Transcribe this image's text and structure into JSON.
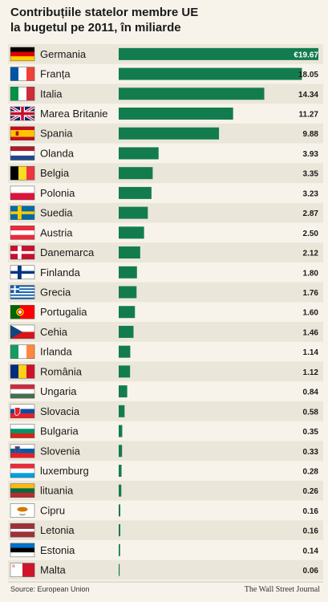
{
  "title_line1": "Contribuțiile statelor membre UE",
  "title_line2": "la bugetul pe 2011, în miliarde",
  "source": "Source: European Union",
  "publisher": "The Wall Street Journal",
  "colors": {
    "bar": "#137c4f",
    "row_alt": "#ebe6da",
    "background": "#f7f3ea"
  },
  "chart_data": {
    "type": "bar",
    "orientation": "horizontal",
    "title": "Contribuțiile statelor membre UE la bugetul pe 2011, în miliarde",
    "categories": [
      "Germania",
      "Franța",
      "Italia",
      "Marea Britanie",
      "Spania",
      "Olanda",
      "Belgia",
      "Polonia",
      "Suedia",
      "Austria",
      "Danemarca",
      "Finlanda",
      "Grecia",
      "Portugalia",
      "Cehia",
      "Irlanda",
      "România",
      "Ungaria",
      "Slovacia",
      "Bulgaria",
      "Slovenia",
      "luxemburg",
      "lituania",
      "Cipru",
      "Letonia",
      "Estonia",
      "Malta"
    ],
    "values": [
      19.67,
      18.05,
      14.34,
      11.27,
      9.88,
      3.93,
      3.35,
      3.23,
      2.87,
      2.5,
      2.12,
      1.8,
      1.76,
      1.6,
      1.46,
      1.14,
      1.12,
      0.84,
      0.58,
      0.35,
      0.33,
      0.28,
      0.26,
      0.16,
      0.16,
      0.14,
      0.06
    ],
    "value_labels": [
      "€19.67",
      "18.05",
      "14.34",
      "11.27",
      "9.88",
      "3.93",
      "3.35",
      "3.23",
      "2.87",
      "2.50",
      "2.12",
      "1.80",
      "1.76",
      "1.60",
      "1.46",
      "1.14",
      "1.12",
      "0.84",
      "0.58",
      "0.35",
      "0.33",
      "0.28",
      "0.26",
      "0.16",
      "0.16",
      "0.14",
      "0.06"
    ],
    "flag_icons": [
      "germany-flag-icon",
      "france-flag-icon",
      "italy-flag-icon",
      "uk-flag-icon",
      "spain-flag-icon",
      "netherlands-flag-icon",
      "belgium-flag-icon",
      "poland-flag-icon",
      "sweden-flag-icon",
      "austria-flag-icon",
      "denmark-flag-icon",
      "finland-flag-icon",
      "greece-flag-icon",
      "portugal-flag-icon",
      "czech-flag-icon",
      "ireland-flag-icon",
      "romania-flag-icon",
      "hungary-flag-icon",
      "slovakia-flag-icon",
      "bulgaria-flag-icon",
      "slovenia-flag-icon",
      "luxembourg-flag-icon",
      "lithuania-flag-icon",
      "cyprus-flag-icon",
      "latvia-flag-icon",
      "estonia-flag-icon",
      "malta-flag-icon"
    ],
    "xlim": [
      0,
      19.67
    ]
  }
}
